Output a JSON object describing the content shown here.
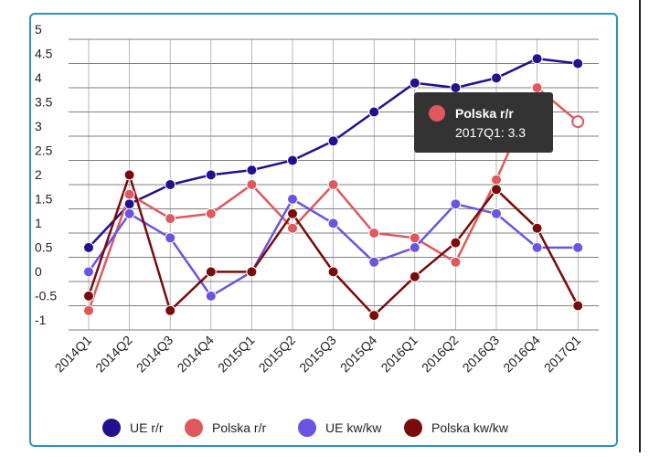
{
  "chart_data": {
    "type": "line",
    "categories": [
      "2014Q1",
      "2014Q2",
      "2014Q3",
      "2014Q4",
      "2015Q1",
      "2015Q2",
      "2015Q3",
      "2015Q4",
      "2016Q1",
      "2016Q2",
      "2016Q3",
      "2016Q4",
      "2017Q1"
    ],
    "series": [
      {
        "name": "UE r/r",
        "color": "#21118f",
        "values": [
          0.7,
          1.6,
          2.0,
          2.2,
          2.3,
          2.5,
          2.9,
          3.5,
          4.1,
          4.0,
          4.2,
          4.6,
          4.5
        ]
      },
      {
        "name": "Polska r/r",
        "color": "#e0575d",
        "values": [
          -0.6,
          1.8,
          1.3,
          1.4,
          2.0,
          1.1,
          2.0,
          1.0,
          0.9,
          0.4,
          2.1,
          4.0,
          3.3
        ]
      },
      {
        "name": "UE kw/kw",
        "color": "#6a55e0",
        "values": [
          0.2,
          1.4,
          0.9,
          -0.3,
          0.2,
          1.7,
          1.2,
          0.4,
          0.7,
          1.6,
          1.4,
          0.7,
          0.7
        ]
      },
      {
        "name": "Polska kw/kw",
        "color": "#7a0b0b",
        "values": [
          -0.3,
          2.2,
          -0.6,
          0.2,
          0.2,
          1.4,
          0.2,
          -0.7,
          0.1,
          0.8,
          1.9,
          1.1,
          -0.5
        ]
      }
    ],
    "ylim": [
      -1,
      5
    ],
    "yticks": [
      -1,
      -0.5,
      0,
      0.5,
      1,
      1.5,
      2,
      2.5,
      3,
      3.5,
      4,
      4.5,
      5
    ],
    "grid": true,
    "legend": "bottom",
    "tooltip": {
      "title": "Polska r/r",
      "label": "2017Q1: 3.3"
    }
  }
}
